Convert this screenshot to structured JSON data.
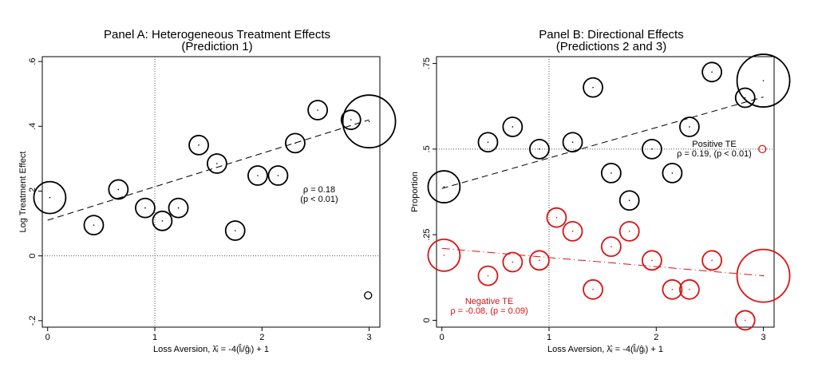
{
  "colors": {
    "black": "#000000",
    "red": "#dd1111",
    "guide": "#555555"
  },
  "chart_data": [
    {
      "type": "scatter",
      "title": "Panel A: Heterogeneous Treatment Effects",
      "subtitle": "(Prediction 1)",
      "xlabel": "Loss Aversion, λ̂ᵢ = -4(l̂ᵢ/ĝᵢ) + 1",
      "ylabel": "Log Treatment Effect",
      "xlim": [
        -0.05,
        3.1
      ],
      "ylim": [
        -0.22,
        0.615
      ],
      "xticks": [
        {
          "value": 0,
          "label": "0"
        },
        {
          "value": 1,
          "label": "1"
        },
        {
          "value": 2,
          "label": "2"
        },
        {
          "value": 3,
          "label": "3"
        }
      ],
      "yticks": [
        {
          "value": -0.2,
          "label": "-.2"
        },
        {
          "value": 0,
          "label": "0"
        },
        {
          "value": 0.2,
          "label": ".2"
        },
        {
          "value": 0.4,
          "label": ".4"
        },
        {
          "value": 0.6,
          "label": ".6"
        }
      ],
      "reference_lines": {
        "x": 1,
        "y": 0
      },
      "series": [
        {
          "color": "#000000",
          "points": [
            {
              "x": 0.02,
              "y": 0.18,
              "w": 3
            },
            {
              "x": 0.43,
              "y": 0.095,
              "w": 1
            },
            {
              "x": 0.66,
              "y": 0.205,
              "w": 1
            },
            {
              "x": 0.91,
              "y": 0.148,
              "w": 1
            },
            {
              "x": 1.07,
              "y": 0.108,
              "w": 1
            },
            {
              "x": 1.22,
              "y": 0.148,
              "w": 1
            },
            {
              "x": 1.41,
              "y": 0.342,
              "w": 1
            },
            {
              "x": 1.58,
              "y": 0.285,
              "w": 1
            },
            {
              "x": 1.75,
              "y": 0.078,
              "w": 1
            },
            {
              "x": 1.96,
              "y": 0.248,
              "w": 1
            },
            {
              "x": 2.15,
              "y": 0.248,
              "w": 1
            },
            {
              "x": 2.31,
              "y": 0.348,
              "w": 1
            },
            {
              "x": 2.52,
              "y": 0.45,
              "w": 1
            },
            {
              "x": 2.83,
              "y": 0.42,
              "w": 1
            },
            {
              "x": 3.0,
              "y": 0.415,
              "w": 4
            },
            {
              "x": 2.99,
              "y": -0.122,
              "w": 0
            }
          ],
          "fit": {
            "x": [
              0,
              3
            ],
            "y": [
              0.11,
              0.42
            ]
          },
          "annotations": [
            "ρ = 0.18",
            "(p < 0.01)"
          ]
        }
      ]
    },
    {
      "type": "scatter",
      "title": "Panel B: Directional Effects",
      "subtitle": "(Predictions 2 and 3)",
      "xlabel": "Loss Aversion, λ̂ᵢ = -4(l̂ᵢ/ĝᵢ) + 1",
      "ylabel": "Proportion",
      "xlim": [
        -0.05,
        3.1
      ],
      "ylim": [
        -0.02,
        0.77
      ],
      "xticks": [
        {
          "value": 0,
          "label": "0"
        },
        {
          "value": 1,
          "label": "1"
        },
        {
          "value": 2,
          "label": "2"
        },
        {
          "value": 3,
          "label": "3"
        }
      ],
      "yticks": [
        {
          "value": 0,
          "label": "0"
        },
        {
          "value": 0.25,
          "label": ".25"
        },
        {
          "value": 0.5,
          "label": ".5"
        },
        {
          "value": 0.75,
          "label": ".75"
        }
      ],
      "reference_lines": {
        "x": 1,
        "y": 0.5
      },
      "series": [
        {
          "name": "Positive TE",
          "color": "#000000",
          "points": [
            {
              "x": 0.02,
              "y": 0.39,
              "w": 3
            },
            {
              "x": 0.43,
              "y": 0.52,
              "w": 1
            },
            {
              "x": 0.66,
              "y": 0.565,
              "w": 1
            },
            {
              "x": 0.91,
              "y": 0.5,
              "w": 1
            },
            {
              "x": 1.22,
              "y": 0.52,
              "w": 1
            },
            {
              "x": 1.41,
              "y": 0.68,
              "w": 1
            },
            {
              "x": 1.58,
              "y": 0.43,
              "w": 1
            },
            {
              "x": 1.75,
              "y": 0.35,
              "w": 1
            },
            {
              "x": 1.96,
              "y": 0.5,
              "w": 1
            },
            {
              "x": 2.15,
              "y": 0.43,
              "w": 1
            },
            {
              "x": 2.31,
              "y": 0.565,
              "w": 1
            },
            {
              "x": 2.52,
              "y": 0.725,
              "w": 1
            },
            {
              "x": 2.83,
              "y": 0.65,
              "w": 1
            },
            {
              "x": 3.0,
              "y": 0.7,
              "w": 4
            }
          ],
          "fit": {
            "x": [
              0,
              3
            ],
            "y": [
              0.385,
              0.652
            ]
          },
          "annotations": [
            "Positive TE",
            "ρ = 0.19, (p < 0.01)"
          ]
        },
        {
          "name": "Negative TE",
          "color": "#dd1111",
          "points": [
            {
              "x": 0.02,
              "y": 0.19,
              "w": 3
            },
            {
              "x": 0.43,
              "y": 0.13,
              "w": 1
            },
            {
              "x": 0.66,
              "y": 0.17,
              "w": 1
            },
            {
              "x": 0.91,
              "y": 0.175,
              "w": 1
            },
            {
              "x": 1.07,
              "y": 0.3,
              "w": 1
            },
            {
              "x": 1.22,
              "y": 0.26,
              "w": 1
            },
            {
              "x": 1.41,
              "y": 0.09,
              "w": 1
            },
            {
              "x": 1.58,
              "y": 0.215,
              "w": 1
            },
            {
              "x": 1.75,
              "y": 0.26,
              "w": 1
            },
            {
              "x": 1.96,
              "y": 0.175,
              "w": 1
            },
            {
              "x": 2.15,
              "y": 0.09,
              "w": 1
            },
            {
              "x": 2.31,
              "y": 0.09,
              "w": 1
            },
            {
              "x": 2.52,
              "y": 0.175,
              "w": 1
            },
            {
              "x": 2.83,
              "y": 0.0,
              "w": 1
            },
            {
              "x": 3.0,
              "y": 0.13,
              "w": 4
            },
            {
              "x": 2.99,
              "y": 0.5,
              "w": 0
            }
          ],
          "fit": {
            "x": [
              0,
              3
            ],
            "y": [
              0.21,
              0.13
            ]
          },
          "annotations": [
            "Negative TE",
            "ρ = -0.08, (p = 0.09)"
          ]
        }
      ]
    }
  ]
}
